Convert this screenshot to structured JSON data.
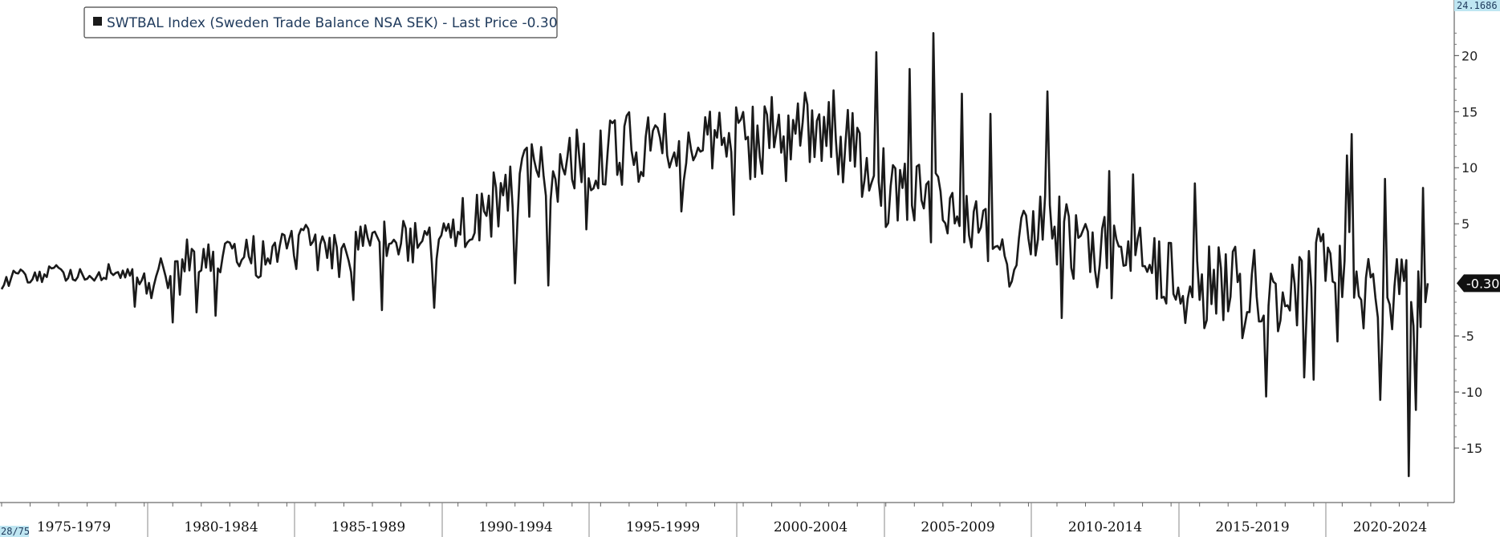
{
  "legend": {
    "label": "SWTBAL Index (Sweden Trade Balance NSA SEK) - Last Price -0.30"
  },
  "corner_top_right": "24.1686",
  "corner_bottom_left": "28/75",
  "last_value_label": "-0.30",
  "colors": {
    "line": "#1a1a1a",
    "axis": "#444444",
    "tag_bg": "#111111",
    "corner_bg": "#bfe6f2"
  },
  "chart_data": {
    "type": "line",
    "title": "",
    "xlabel": "",
    "ylabel": "",
    "x_categories": [
      "1975-1979",
      "1980-1984",
      "1985-1989",
      "1990-1994",
      "1995-1999",
      "2000-2004",
      "2005-2009",
      "2010-2014",
      "2015-2019",
      "2020-2024"
    ],
    "y_ticks": [
      20,
      15,
      10,
      5,
      -5,
      -10,
      -15
    ],
    "ylim": [
      -18.5,
      24.1686
    ],
    "legend_position": "top-left",
    "grid": false,
    "series": [
      {
        "name": "SWTBAL Index (Sweden Trade Balance NSA SEK) - Last Price",
        "x_start": "1975-01",
        "frequency": "monthly",
        "last_value": -0.3,
        "anchors": [
          [
            0,
            -1.2
          ],
          [
            4,
            0.6
          ],
          [
            12,
            0.1
          ],
          [
            24,
            0.7
          ],
          [
            36,
            0.3
          ],
          [
            48,
            0.9
          ],
          [
            60,
            -0.2
          ],
          [
            72,
            0.5
          ],
          [
            84,
            1.1
          ],
          [
            96,
            2.1
          ],
          [
            108,
            1.5
          ],
          [
            120,
            3.0
          ],
          [
            132,
            2.5
          ],
          [
            144,
            2.1
          ],
          [
            156,
            3.3
          ],
          [
            168,
            3.6
          ],
          [
            180,
            2.9
          ],
          [
            192,
            4.4
          ],
          [
            204,
            5.7
          ],
          [
            216,
            7.9
          ],
          [
            228,
            9.3
          ],
          [
            240,
            10.2
          ],
          [
            252,
            10.6
          ],
          [
            264,
            11.8
          ],
          [
            276,
            11.5
          ],
          [
            288,
            12.1
          ],
          [
            300,
            12.7
          ],
          [
            312,
            11.8
          ],
          [
            324,
            13.2
          ],
          [
            336,
            13.6
          ],
          [
            348,
            12.9
          ],
          [
            360,
            11.2
          ],
          [
            372,
            8.1
          ],
          [
            384,
            7.2
          ],
          [
            396,
            6.4
          ],
          [
            408,
            5.3
          ],
          [
            420,
            3.1
          ],
          [
            432,
            4.4
          ],
          [
            444,
            4.9
          ],
          [
            456,
            2.8
          ],
          [
            468,
            1.6
          ],
          [
            480,
            1.1
          ],
          [
            492,
            0.4
          ],
          [
            504,
            -1.2
          ],
          [
            516,
            0.2
          ],
          [
            528,
            -0.9
          ],
          [
            540,
            -1.8
          ],
          [
            552,
            0.9
          ],
          [
            564,
            1.5
          ],
          [
            576,
            -2.0
          ],
          [
            588,
            -1.6
          ],
          [
            600,
            -0.3
          ]
        ],
        "spikes": [
          [
            56,
            -2.4
          ],
          [
            72,
            -3.8
          ],
          [
            78,
            3.6
          ],
          [
            82,
            -2.9
          ],
          [
            90,
            -3.2
          ],
          [
            106,
            3.9
          ],
          [
            118,
            4.1
          ],
          [
            128,
            4.9
          ],
          [
            140,
            4.0
          ],
          [
            148,
            -1.8
          ],
          [
            160,
            -2.7
          ],
          [
            170,
            4.6
          ],
          [
            182,
            -2.5
          ],
          [
            194,
            7.3
          ],
          [
            204,
            5.7
          ],
          [
            214,
            10.1
          ],
          [
            216,
            -0.3
          ],
          [
            228,
            9.3
          ],
          [
            230,
            -0.5
          ],
          [
            238,
            10.9
          ],
          [
            242,
            13.4
          ],
          [
            246,
            4.5
          ],
          [
            262,
            13.7
          ],
          [
            274,
            13.3
          ],
          [
            286,
            6.1
          ],
          [
            298,
            15.0
          ],
          [
            308,
            5.8
          ],
          [
            324,
            16.3
          ],
          [
            330,
            8.8
          ],
          [
            338,
            16.7
          ],
          [
            350,
            16.9
          ],
          [
            362,
            7.4
          ],
          [
            368,
            20.3
          ],
          [
            370,
            6.6
          ],
          [
            382,
            18.8
          ],
          [
            392,
            22.0
          ],
          [
            404,
            16.6
          ],
          [
            408,
            2.9
          ],
          [
            416,
            14.8
          ],
          [
            424,
            -0.6
          ],
          [
            440,
            16.8
          ],
          [
            446,
            -3.4
          ],
          [
            466,
            9.7
          ],
          [
            476,
            9.4
          ],
          [
            502,
            8.6
          ],
          [
            514,
            -3.6
          ],
          [
            522,
            -5.2
          ],
          [
            532,
            -10.4
          ],
          [
            548,
            -8.7
          ],
          [
            552,
            -8.9
          ],
          [
            562,
            -5.5
          ],
          [
            566,
            11.1
          ],
          [
            568,
            13.0
          ],
          [
            580,
            -10.7
          ],
          [
            582,
            9.0
          ],
          [
            592,
            -17.5
          ],
          [
            595,
            -11.6
          ],
          [
            598,
            8.2
          ]
        ]
      }
    ]
  }
}
